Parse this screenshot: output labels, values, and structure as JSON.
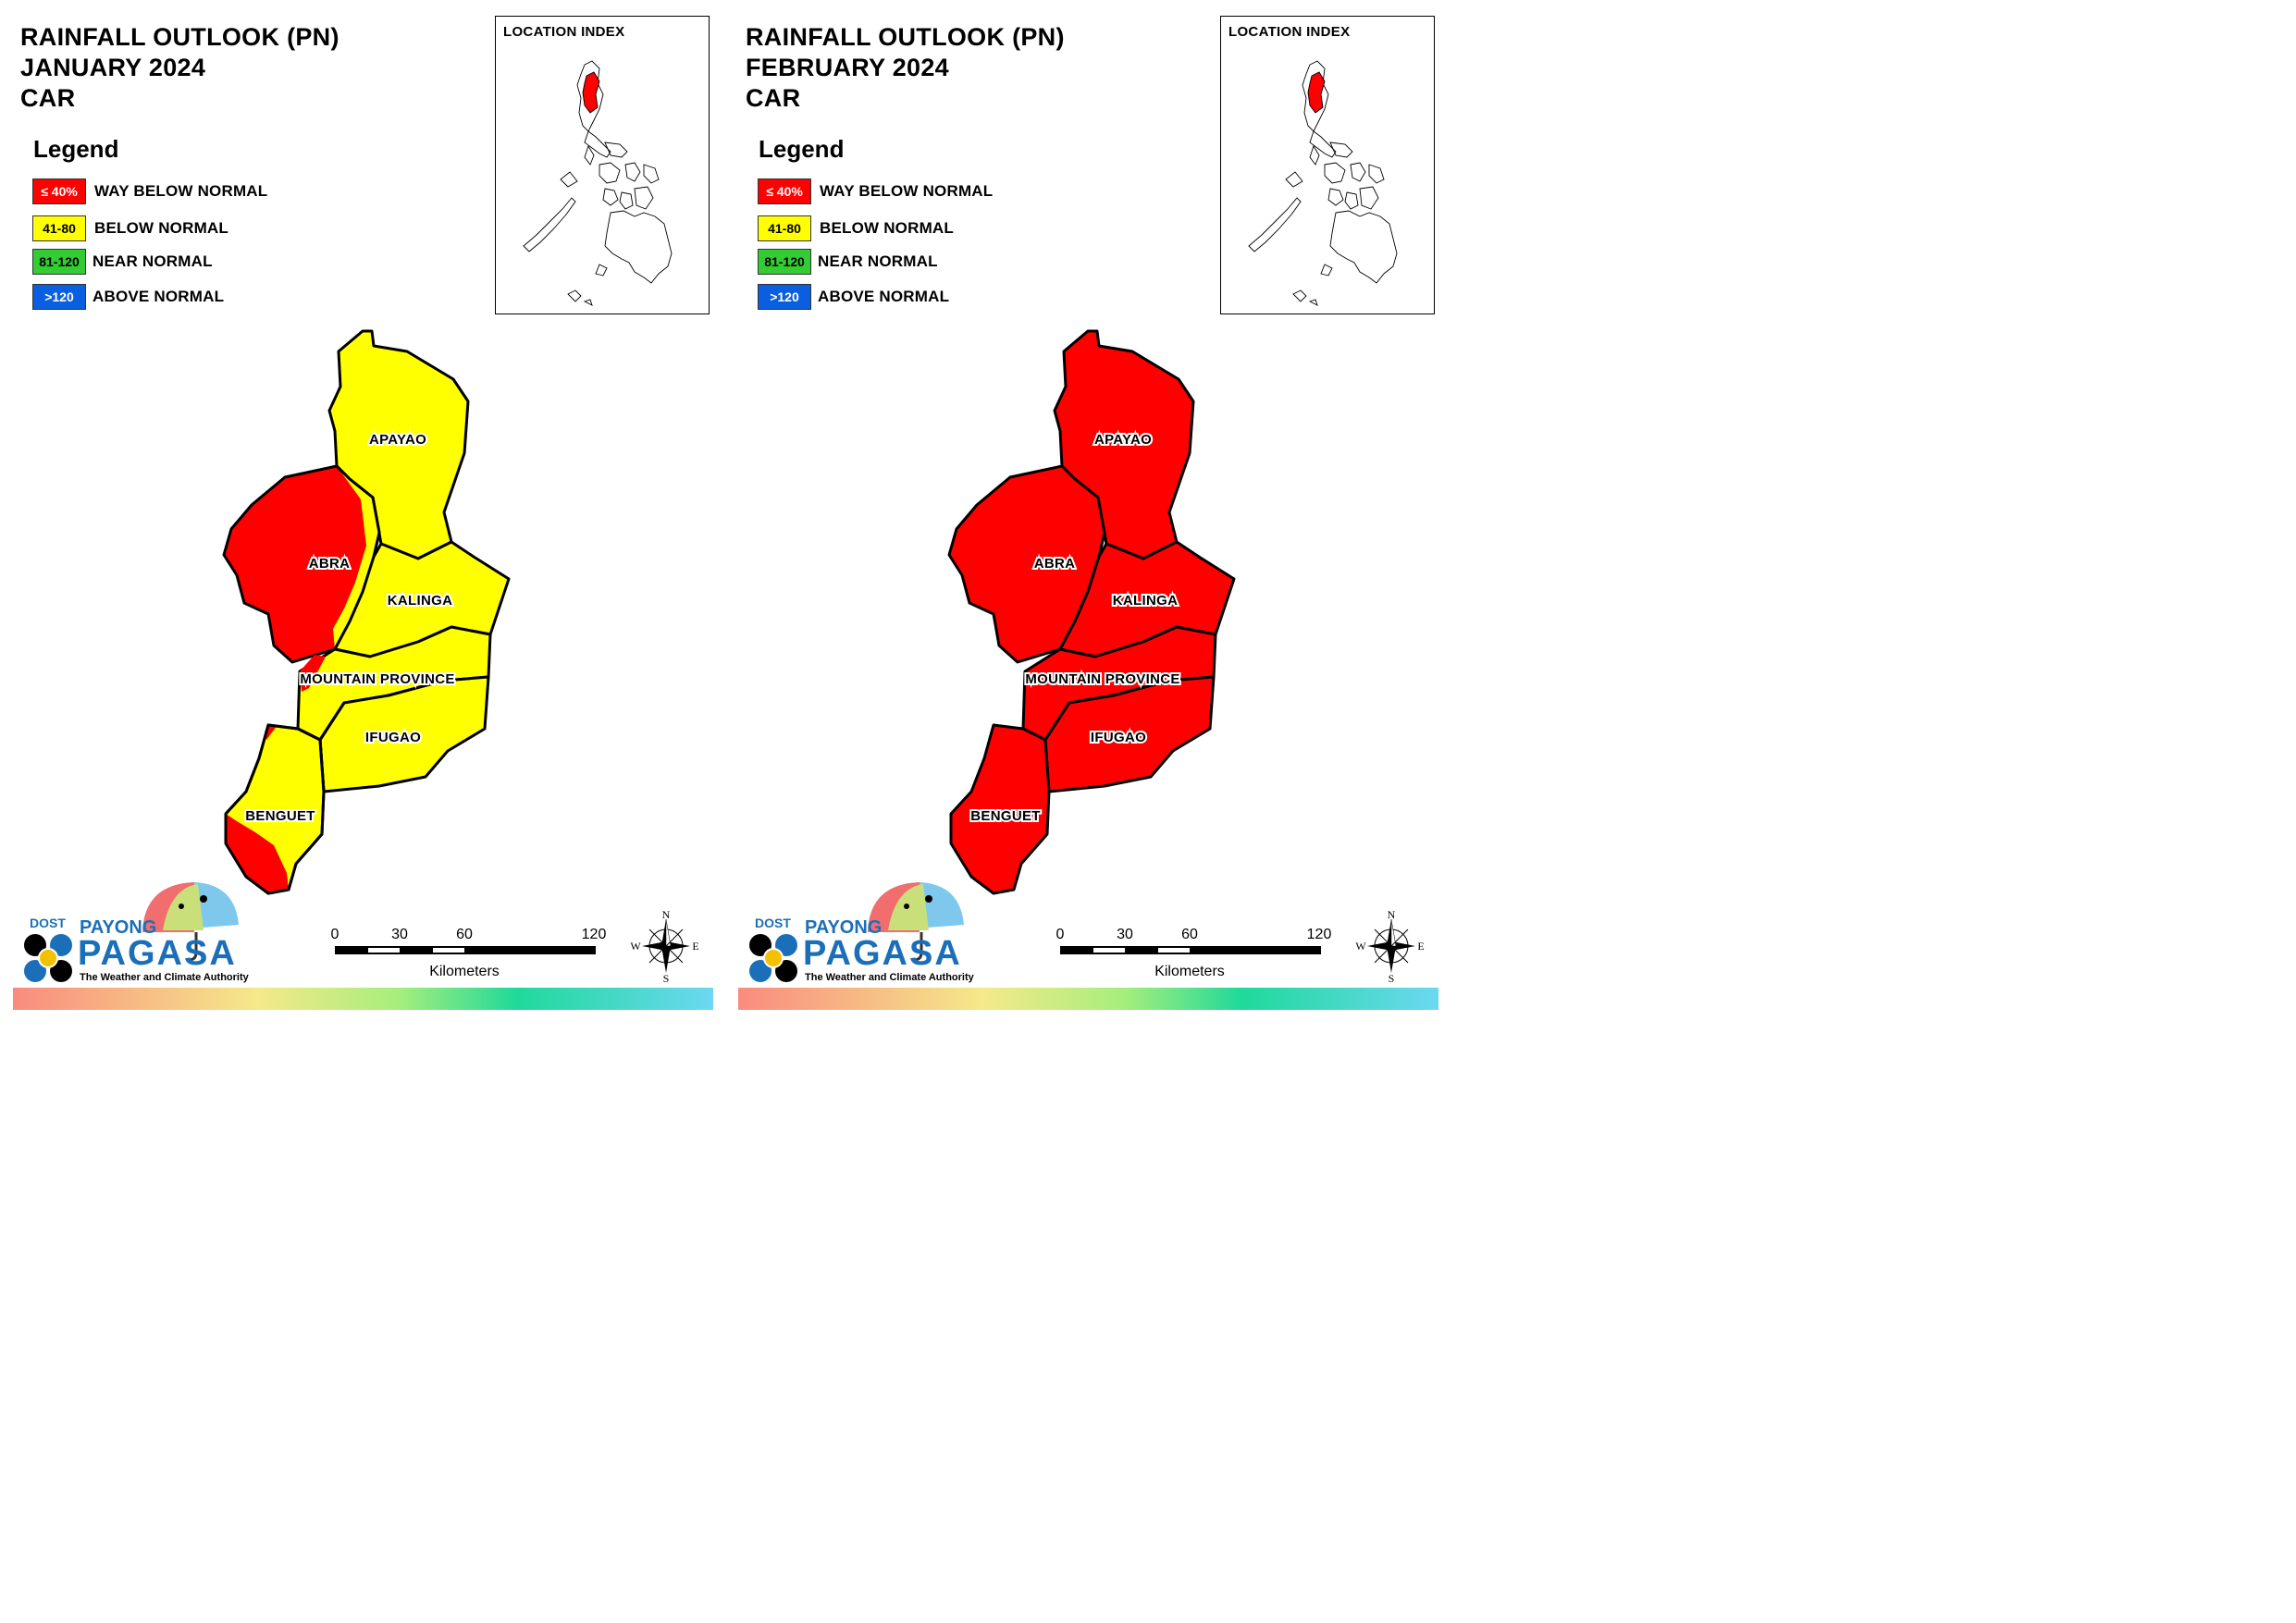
{
  "legend": {
    "title": "Legend",
    "items": [
      {
        "range": "≤ 40%",
        "label": "WAY BELOW NORMAL",
        "color": "#ff0000",
        "text_color": "#ffffff"
      },
      {
        "range": "41-80",
        "label": "BELOW NORMAL",
        "color": "#ffff00",
        "text_color": "#000000"
      },
      {
        "range": "81-120",
        "label": "NEAR NORMAL",
        "color": "#33cc33",
        "text_color": "#000000"
      },
      {
        "range": ">120",
        "label": "ABOVE NORMAL",
        "color": "#0a5fe0",
        "text_color": "#ffffff"
      }
    ]
  },
  "location_index": {
    "title": "LOCATION INDEX",
    "highlight_color": "#ff0000"
  },
  "provinces": [
    "APAYAO",
    "ABRA",
    "KALINGA",
    "MOUNTAIN PROVINCE",
    "IFUGAO",
    "BENGUET"
  ],
  "panels": [
    {
      "title_line1": "RAINFALL OUTLOOK (PN)",
      "title_line2": "JANUARY 2024",
      "title_line3": "CAR",
      "province_category": {
        "APAYAO": "BELOW NORMAL",
        "ABRA": "WAY BELOW NORMAL",
        "KALINGA": "BELOW NORMAL",
        "MOUNTAIN PROVINCE": "BELOW NORMAL",
        "IFUGAO": "BELOW NORMAL",
        "BENGUET": "BELOW NORMAL"
      },
      "partial_zones": [
        "ABRA eastern edge: BELOW NORMAL",
        "BENGUET southwest: WAY BELOW NORMAL",
        "MOUNTAIN PROVINCE west tip: WAY BELOW NORMAL"
      ]
    },
    {
      "title_line1": "RAINFALL OUTLOOK (PN)",
      "title_line2": "FEBRUARY 2024",
      "title_line3": "CAR",
      "province_category": {
        "APAYAO": "WAY BELOW NORMAL",
        "ABRA": "WAY BELOW NORMAL",
        "KALINGA": "WAY BELOW NORMAL",
        "MOUNTAIN PROVINCE": "WAY BELOW NORMAL",
        "IFUGAO": "WAY BELOW NORMAL",
        "BENGUET": "WAY BELOW NORMAL"
      },
      "partial_zones": []
    }
  ],
  "scale": {
    "ticks": [
      "0",
      "30",
      "60",
      "120"
    ],
    "unit": "Kilometers"
  },
  "compass": {
    "n": "N",
    "s": "S",
    "e": "E",
    "w": "W"
  },
  "logo": {
    "dost": "DOST",
    "payong": "PAYONG",
    "pagasa": "PAGASA",
    "tagline": "The Weather and Climate Authority"
  }
}
